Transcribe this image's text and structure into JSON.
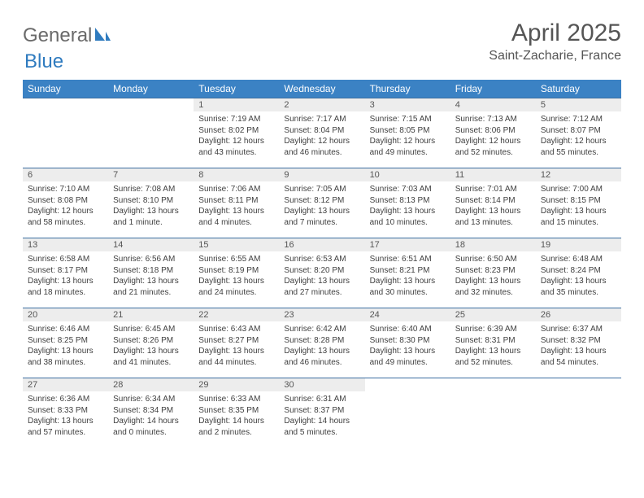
{
  "brand": {
    "text1": "General",
    "text2": "Blue"
  },
  "title": "April 2025",
  "location": "Saint-Zacharie, France",
  "days": [
    "Sunday",
    "Monday",
    "Tuesday",
    "Wednesday",
    "Thursday",
    "Friday",
    "Saturday"
  ],
  "theme": {
    "header_bg": "#3b82c4",
    "header_fg": "#ffffff",
    "row_border": "#3b6ea0",
    "daynum_bg": "#ededed",
    "text_color": "#404040",
    "title_color": "#555555",
    "logo_gray": "#6a6a6a",
    "logo_blue": "#2f7bbf"
  },
  "weeks": [
    [
      null,
      null,
      {
        "n": "1",
        "sr": "Sunrise: 7:19 AM",
        "ss": "Sunset: 8:02 PM",
        "dl1": "Daylight: 12 hours",
        "dl2": "and 43 minutes."
      },
      {
        "n": "2",
        "sr": "Sunrise: 7:17 AM",
        "ss": "Sunset: 8:04 PM",
        "dl1": "Daylight: 12 hours",
        "dl2": "and 46 minutes."
      },
      {
        "n": "3",
        "sr": "Sunrise: 7:15 AM",
        "ss": "Sunset: 8:05 PM",
        "dl1": "Daylight: 12 hours",
        "dl2": "and 49 minutes."
      },
      {
        "n": "4",
        "sr": "Sunrise: 7:13 AM",
        "ss": "Sunset: 8:06 PM",
        "dl1": "Daylight: 12 hours",
        "dl2": "and 52 minutes."
      },
      {
        "n": "5",
        "sr": "Sunrise: 7:12 AM",
        "ss": "Sunset: 8:07 PM",
        "dl1": "Daylight: 12 hours",
        "dl2": "and 55 minutes."
      }
    ],
    [
      {
        "n": "6",
        "sr": "Sunrise: 7:10 AM",
        "ss": "Sunset: 8:08 PM",
        "dl1": "Daylight: 12 hours",
        "dl2": "and 58 minutes."
      },
      {
        "n": "7",
        "sr": "Sunrise: 7:08 AM",
        "ss": "Sunset: 8:10 PM",
        "dl1": "Daylight: 13 hours",
        "dl2": "and 1 minute."
      },
      {
        "n": "8",
        "sr": "Sunrise: 7:06 AM",
        "ss": "Sunset: 8:11 PM",
        "dl1": "Daylight: 13 hours",
        "dl2": "and 4 minutes."
      },
      {
        "n": "9",
        "sr": "Sunrise: 7:05 AM",
        "ss": "Sunset: 8:12 PM",
        "dl1": "Daylight: 13 hours",
        "dl2": "and 7 minutes."
      },
      {
        "n": "10",
        "sr": "Sunrise: 7:03 AM",
        "ss": "Sunset: 8:13 PM",
        "dl1": "Daylight: 13 hours",
        "dl2": "and 10 minutes."
      },
      {
        "n": "11",
        "sr": "Sunrise: 7:01 AM",
        "ss": "Sunset: 8:14 PM",
        "dl1": "Daylight: 13 hours",
        "dl2": "and 13 minutes."
      },
      {
        "n": "12",
        "sr": "Sunrise: 7:00 AM",
        "ss": "Sunset: 8:15 PM",
        "dl1": "Daylight: 13 hours",
        "dl2": "and 15 minutes."
      }
    ],
    [
      {
        "n": "13",
        "sr": "Sunrise: 6:58 AM",
        "ss": "Sunset: 8:17 PM",
        "dl1": "Daylight: 13 hours",
        "dl2": "and 18 minutes."
      },
      {
        "n": "14",
        "sr": "Sunrise: 6:56 AM",
        "ss": "Sunset: 8:18 PM",
        "dl1": "Daylight: 13 hours",
        "dl2": "and 21 minutes."
      },
      {
        "n": "15",
        "sr": "Sunrise: 6:55 AM",
        "ss": "Sunset: 8:19 PM",
        "dl1": "Daylight: 13 hours",
        "dl2": "and 24 minutes."
      },
      {
        "n": "16",
        "sr": "Sunrise: 6:53 AM",
        "ss": "Sunset: 8:20 PM",
        "dl1": "Daylight: 13 hours",
        "dl2": "and 27 minutes."
      },
      {
        "n": "17",
        "sr": "Sunrise: 6:51 AM",
        "ss": "Sunset: 8:21 PM",
        "dl1": "Daylight: 13 hours",
        "dl2": "and 30 minutes."
      },
      {
        "n": "18",
        "sr": "Sunrise: 6:50 AM",
        "ss": "Sunset: 8:23 PM",
        "dl1": "Daylight: 13 hours",
        "dl2": "and 32 minutes."
      },
      {
        "n": "19",
        "sr": "Sunrise: 6:48 AM",
        "ss": "Sunset: 8:24 PM",
        "dl1": "Daylight: 13 hours",
        "dl2": "and 35 minutes."
      }
    ],
    [
      {
        "n": "20",
        "sr": "Sunrise: 6:46 AM",
        "ss": "Sunset: 8:25 PM",
        "dl1": "Daylight: 13 hours",
        "dl2": "and 38 minutes."
      },
      {
        "n": "21",
        "sr": "Sunrise: 6:45 AM",
        "ss": "Sunset: 8:26 PM",
        "dl1": "Daylight: 13 hours",
        "dl2": "and 41 minutes."
      },
      {
        "n": "22",
        "sr": "Sunrise: 6:43 AM",
        "ss": "Sunset: 8:27 PM",
        "dl1": "Daylight: 13 hours",
        "dl2": "and 44 minutes."
      },
      {
        "n": "23",
        "sr": "Sunrise: 6:42 AM",
        "ss": "Sunset: 8:28 PM",
        "dl1": "Daylight: 13 hours",
        "dl2": "and 46 minutes."
      },
      {
        "n": "24",
        "sr": "Sunrise: 6:40 AM",
        "ss": "Sunset: 8:30 PM",
        "dl1": "Daylight: 13 hours",
        "dl2": "and 49 minutes."
      },
      {
        "n": "25",
        "sr": "Sunrise: 6:39 AM",
        "ss": "Sunset: 8:31 PM",
        "dl1": "Daylight: 13 hours",
        "dl2": "and 52 minutes."
      },
      {
        "n": "26",
        "sr": "Sunrise: 6:37 AM",
        "ss": "Sunset: 8:32 PM",
        "dl1": "Daylight: 13 hours",
        "dl2": "and 54 minutes."
      }
    ],
    [
      {
        "n": "27",
        "sr": "Sunrise: 6:36 AM",
        "ss": "Sunset: 8:33 PM",
        "dl1": "Daylight: 13 hours",
        "dl2": "and 57 minutes."
      },
      {
        "n": "28",
        "sr": "Sunrise: 6:34 AM",
        "ss": "Sunset: 8:34 PM",
        "dl1": "Daylight: 14 hours",
        "dl2": "and 0 minutes."
      },
      {
        "n": "29",
        "sr": "Sunrise: 6:33 AM",
        "ss": "Sunset: 8:35 PM",
        "dl1": "Daylight: 14 hours",
        "dl2": "and 2 minutes."
      },
      {
        "n": "30",
        "sr": "Sunrise: 6:31 AM",
        "ss": "Sunset: 8:37 PM",
        "dl1": "Daylight: 14 hours",
        "dl2": "and 5 minutes."
      },
      null,
      null,
      null
    ]
  ]
}
